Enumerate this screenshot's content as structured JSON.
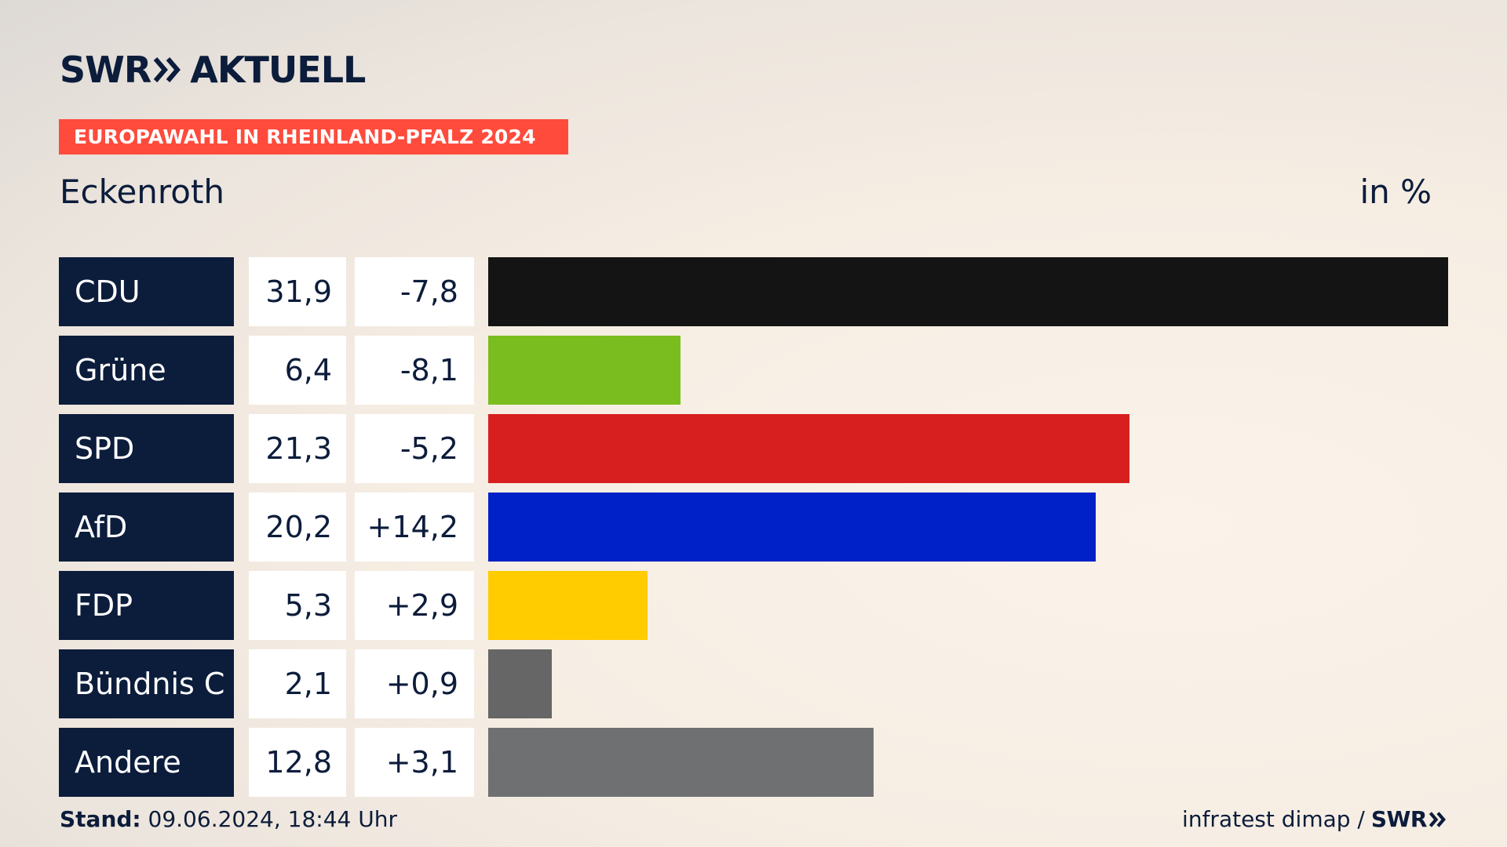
{
  "header": {
    "brand_part1": "SWR",
    "brand_part2": "AKTUELL",
    "banner": "EUROPAWAHL IN RHEINLAND-PFALZ 2024",
    "place": "Eckenroth",
    "unit": "in %"
  },
  "footer": {
    "stand_label": "Stand:",
    "stand_value": "09.06.2024, 18:44 Uhr",
    "source": "infratest dimap /",
    "source_brand": "SWR"
  },
  "chart_data": {
    "type": "bar",
    "orientation": "horizontal",
    "unit": "in %",
    "categories": [
      "CDU",
      "Grüne",
      "SPD",
      "AfD",
      "FDP",
      "Bündnis C",
      "Andere"
    ],
    "values": [
      31.9,
      6.4,
      21.3,
      20.2,
      5.3,
      2.1,
      12.8
    ],
    "value_labels": [
      "31,9",
      "6,4",
      "21,3",
      "20,2",
      "5,3",
      "2,1",
      "12,8"
    ],
    "change_labels": [
      "-7,8",
      "-8,1",
      "-5,2",
      "+14,2",
      "+2,9",
      "+0,9",
      "+3,1"
    ],
    "colors": [
      "#141414",
      "#79be1e",
      "#d71f1f",
      "#0021c7",
      "#ffcc00",
      "#666666",
      "#6f7072"
    ],
    "xlim": [
      0,
      31.9
    ],
    "grid": false,
    "legend": "none"
  }
}
